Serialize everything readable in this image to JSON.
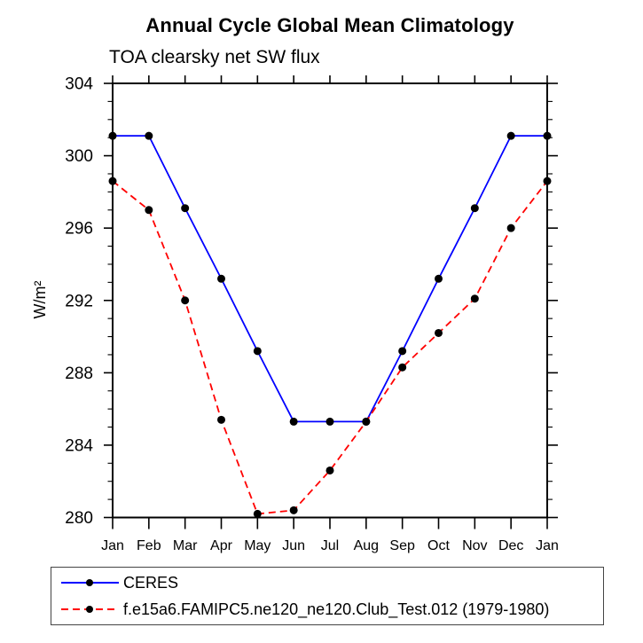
{
  "chart_data": {
    "type": "line",
    "title": "Annual Cycle Global Mean Climatology",
    "subtitle": "TOA clearsky net SW flux",
    "ylabel": "W/m²",
    "xlabel": "",
    "categories": [
      "Jan",
      "Feb",
      "Mar",
      "Apr",
      "May",
      "Jun",
      "Jul",
      "Aug",
      "Sep",
      "Oct",
      "Nov",
      "Dec",
      "Jan"
    ],
    "ylim": [
      280,
      304
    ],
    "yticks": [
      280,
      284,
      288,
      292,
      296,
      300,
      304
    ],
    "ytick_minor_step": 1,
    "grid": false,
    "legend_position": "bottom-left",
    "marker": "filled-circle",
    "marker_color": "#000000",
    "axis_color": "#000000",
    "series": [
      {
        "name": "CERES",
        "style": "solid",
        "color": "#0000ff",
        "values": [
          301.1,
          301.1,
          297.1,
          293.2,
          289.2,
          285.3,
          285.3,
          285.3,
          289.2,
          293.2,
          297.1,
          301.1,
          301.1
        ]
      },
      {
        "name": "f.e15a6.FAMIPC5.ne120_ne120.Club_Test.012 (1979-1980)",
        "style": "dashed",
        "color": "#ff0000",
        "values": [
          298.6,
          297.0,
          292.0,
          285.4,
          280.2,
          280.4,
          282.6,
          285.3,
          288.3,
          290.2,
          292.1,
          296.0,
          298.6
        ]
      }
    ]
  }
}
